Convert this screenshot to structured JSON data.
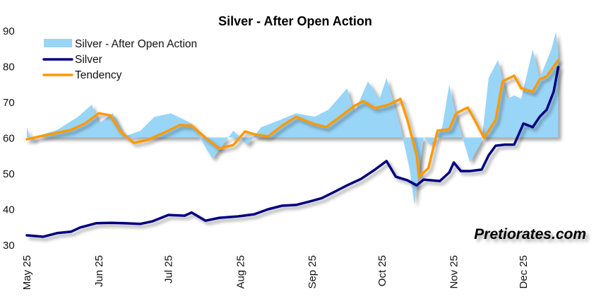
{
  "chart_data": {
    "type": "line",
    "title": "Silver - After Open Action",
    "xlabel": "",
    "ylabel": "",
    "ylim": [
      30,
      90
    ],
    "yticks": [
      30,
      40,
      50,
      60,
      70,
      80,
      90
    ],
    "xlim": [
      "2025-04-30",
      "2025-12-31"
    ],
    "xticks": [
      {
        "date": "2025-05-01",
        "label": "May 25"
      },
      {
        "date": "2025-06-01",
        "label": "Jun 25"
      },
      {
        "date": "2025-07-01",
        "label": "Jul 25"
      },
      {
        "date": "2025-08-01",
        "label": "Aug 25"
      },
      {
        "date": "2025-09-01",
        "label": "Sep 25"
      },
      {
        "date": "2025-10-01",
        "label": "Oct 25"
      },
      {
        "date": "2025-11-01",
        "label": "Nov 25"
      },
      {
        "date": "2025-12-01",
        "label": "Dec 25"
      }
    ],
    "grid": false,
    "legend_position": "top-left",
    "area_baseline": 60,
    "series": [
      {
        "name": "Silver - After Open Action",
        "kind": "area",
        "color": "#99d5f7",
        "points": [
          [
            "2025-05-01",
            62.9
          ],
          [
            "2025-05-03",
            59.0
          ],
          [
            "2025-05-08",
            60.9
          ],
          [
            "2025-05-14",
            62.1
          ],
          [
            "2025-05-23",
            65.8
          ],
          [
            "2025-05-29",
            69.2
          ],
          [
            "2025-06-01",
            63.9
          ],
          [
            "2025-06-07",
            66.8
          ],
          [
            "2025-06-12",
            60.3
          ],
          [
            "2025-06-19",
            61.9
          ],
          [
            "2025-06-25",
            65.8
          ],
          [
            "2025-07-02",
            66.8
          ],
          [
            "2025-07-11",
            63.9
          ],
          [
            "2025-07-20",
            54.0
          ],
          [
            "2025-07-29",
            61.9
          ],
          [
            "2025-08-04",
            57.9
          ],
          [
            "2025-08-10",
            62.9
          ],
          [
            "2025-08-18",
            64.9
          ],
          [
            "2025-08-25",
            66.8
          ],
          [
            "2025-09-02",
            65.8
          ],
          [
            "2025-09-08",
            67.8
          ],
          [
            "2025-09-16",
            73.8
          ],
          [
            "2025-09-19",
            66.8
          ],
          [
            "2025-09-25",
            75.7
          ],
          [
            "2025-09-30",
            70.8
          ],
          [
            "2025-10-03",
            76.7
          ],
          [
            "2025-10-09",
            62.9
          ],
          [
            "2025-10-13",
            51.0
          ],
          [
            "2025-10-15",
            41.1
          ],
          [
            "2025-10-19",
            60.0
          ],
          [
            "2025-10-22",
            57.9
          ],
          [
            "2025-10-27",
            62.9
          ],
          [
            "2025-10-30",
            74.8
          ],
          [
            "2025-11-02",
            65.8
          ],
          [
            "2025-11-08",
            53.0
          ],
          [
            "2025-11-13",
            59.0
          ],
          [
            "2025-11-16",
            76.7
          ],
          [
            "2025-11-20",
            81.7
          ],
          [
            "2025-11-24",
            70.8
          ],
          [
            "2025-11-27",
            71.8
          ],
          [
            "2025-11-30",
            70.8
          ],
          [
            "2025-12-05",
            84.6
          ],
          [
            "2025-12-08",
            76.7
          ],
          [
            "2025-12-13",
            84.6
          ],
          [
            "2025-12-15",
            89.6
          ],
          [
            "2025-12-16",
            83.7
          ]
        ]
      },
      {
        "name": "Silver",
        "kind": "line",
        "color": "#000080",
        "points": [
          [
            "2025-05-01",
            32.6
          ],
          [
            "2025-05-08",
            32.2
          ],
          [
            "2025-05-14",
            33.2
          ],
          [
            "2025-05-20",
            33.6
          ],
          [
            "2025-05-24",
            34.8
          ],
          [
            "2025-05-31",
            36.0
          ],
          [
            "2025-06-06",
            36.1
          ],
          [
            "2025-06-12",
            36.0
          ],
          [
            "2025-06-19",
            35.8
          ],
          [
            "2025-06-24",
            36.5
          ],
          [
            "2025-07-01",
            38.3
          ],
          [
            "2025-07-08",
            38.1
          ],
          [
            "2025-07-11",
            39.0
          ],
          [
            "2025-07-17",
            36.7
          ],
          [
            "2025-07-23",
            37.5
          ],
          [
            "2025-07-31",
            37.9
          ],
          [
            "2025-08-07",
            38.5
          ],
          [
            "2025-08-13",
            39.9
          ],
          [
            "2025-08-19",
            40.9
          ],
          [
            "2025-08-25",
            41.1
          ],
          [
            "2025-08-31",
            42.1
          ],
          [
            "2025-09-05",
            43.0
          ],
          [
            "2025-09-10",
            44.6
          ],
          [
            "2025-09-16",
            46.6
          ],
          [
            "2025-09-22",
            48.4
          ],
          [
            "2025-09-28",
            51.0
          ],
          [
            "2025-10-03",
            53.4
          ],
          [
            "2025-10-07",
            49.0
          ],
          [
            "2025-10-12",
            48.0
          ],
          [
            "2025-10-16",
            46.6
          ],
          [
            "2025-10-19",
            48.2
          ],
          [
            "2025-10-26",
            47.8
          ],
          [
            "2025-10-30",
            50.2
          ],
          [
            "2025-11-01",
            53.0
          ],
          [
            "2025-11-04",
            50.6
          ],
          [
            "2025-11-08",
            50.6
          ],
          [
            "2025-11-13",
            51.0
          ],
          [
            "2025-11-16",
            55.0
          ],
          [
            "2025-11-19",
            57.7
          ],
          [
            "2025-11-23",
            58.0
          ],
          [
            "2025-11-27",
            58.0
          ],
          [
            "2025-12-01",
            63.9
          ],
          [
            "2025-12-05",
            62.9
          ],
          [
            "2025-12-08",
            65.8
          ],
          [
            "2025-12-11",
            67.8
          ],
          [
            "2025-12-14",
            72.8
          ],
          [
            "2025-12-16",
            79.7
          ]
        ]
      },
      {
        "name": "Tendency",
        "kind": "line",
        "color": "#ff9900",
        "points": [
          [
            "2025-05-01",
            59.5
          ],
          [
            "2025-05-08",
            60.5
          ],
          [
            "2025-05-14",
            61.3
          ],
          [
            "2025-05-20",
            62.1
          ],
          [
            "2025-05-26",
            63.9
          ],
          [
            "2025-06-01",
            66.8
          ],
          [
            "2025-06-06",
            66.2
          ],
          [
            "2025-06-10",
            61.9
          ],
          [
            "2025-06-16",
            58.5
          ],
          [
            "2025-06-22",
            59.3
          ],
          [
            "2025-06-29",
            61.3
          ],
          [
            "2025-07-06",
            63.5
          ],
          [
            "2025-07-11",
            63.3
          ],
          [
            "2025-07-17",
            59.9
          ],
          [
            "2025-07-23",
            56.9
          ],
          [
            "2025-07-29",
            57.9
          ],
          [
            "2025-08-03",
            61.7
          ],
          [
            "2025-08-07",
            60.9
          ],
          [
            "2025-08-13",
            60.3
          ],
          [
            "2025-08-19",
            63.3
          ],
          [
            "2025-08-25",
            65.8
          ],
          [
            "2025-09-01",
            63.9
          ],
          [
            "2025-09-07",
            62.9
          ],
          [
            "2025-09-13",
            65.8
          ],
          [
            "2025-09-19",
            68.8
          ],
          [
            "2025-09-23",
            70.2
          ],
          [
            "2025-09-28",
            68.2
          ],
          [
            "2025-10-04",
            69.2
          ],
          [
            "2025-10-09",
            70.8
          ],
          [
            "2025-10-12",
            64.9
          ],
          [
            "2025-10-16",
            55.0
          ],
          [
            "2025-10-17",
            49.0
          ],
          [
            "2025-10-21",
            51.4
          ],
          [
            "2025-10-25",
            61.9
          ],
          [
            "2025-10-30",
            62.3
          ],
          [
            "2025-11-02",
            66.8
          ],
          [
            "2025-11-07",
            68.4
          ],
          [
            "2025-11-10",
            64.9
          ],
          [
            "2025-11-14",
            59.9
          ],
          [
            "2025-11-19",
            64.9
          ],
          [
            "2025-11-22",
            75.7
          ],
          [
            "2025-11-27",
            77.3
          ],
          [
            "2025-11-30",
            73.8
          ],
          [
            "2025-12-05",
            72.8
          ],
          [
            "2025-12-08",
            76.3
          ],
          [
            "2025-12-11",
            77.1
          ],
          [
            "2025-12-16",
            81.7
          ]
        ]
      }
    ]
  },
  "watermark": "Pretiorates.com"
}
